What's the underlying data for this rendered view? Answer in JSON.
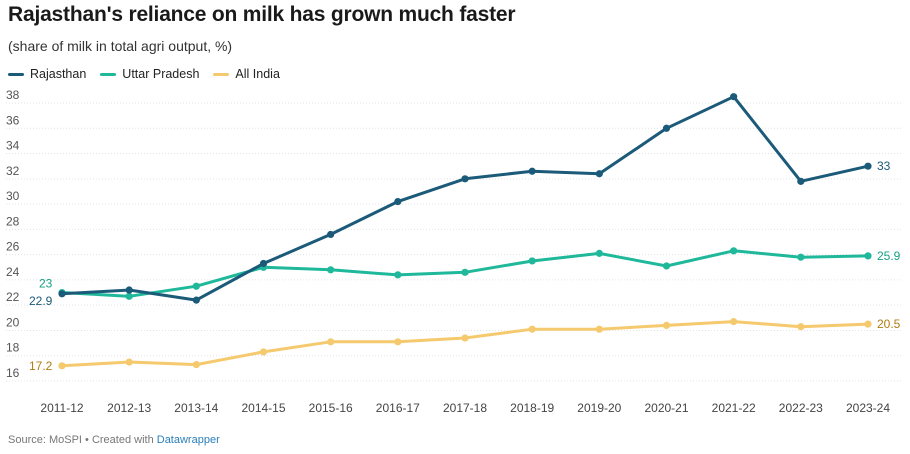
{
  "chart_data": {
    "type": "line",
    "title": "Rajasthan's reliance on milk has grown much faster",
    "subtitle": "(share of milk in total agri output, %)",
    "categories": [
      "2011-12",
      "2012-13",
      "2013-14",
      "2014-15",
      "2015-16",
      "2016-17",
      "2017-18",
      "2018-19",
      "2019-20",
      "2020-21",
      "2021-22",
      "2022-23",
      "2023-24"
    ],
    "ylim": [
      15,
      39
    ],
    "yticks": [
      16,
      18,
      20,
      22,
      24,
      26,
      28,
      30,
      32,
      34,
      36,
      38
    ],
    "series": [
      {
        "name": "Rajasthan",
        "color": "#1b5a78",
        "values": [
          22.9,
          23.2,
          22.4,
          25.3,
          27.6,
          30.2,
          32.0,
          32.6,
          32.4,
          36.0,
          38.5,
          31.8,
          33.0
        ],
        "start_label": "22.9",
        "end_label": "33"
      },
      {
        "name": "Uttar Pradesh",
        "color": "#1fb89a",
        "values": [
          23.0,
          22.7,
          23.5,
          25.0,
          24.8,
          24.4,
          24.6,
          25.5,
          26.1,
          25.1,
          26.3,
          25.8,
          25.9
        ],
        "start_label": "23",
        "end_label": "25.9"
      },
      {
        "name": "All India",
        "color": "#f5c96e",
        "values": [
          17.2,
          17.5,
          17.3,
          18.3,
          19.1,
          19.1,
          19.4,
          20.1,
          20.1,
          20.4,
          20.7,
          20.3,
          20.5
        ],
        "start_label": "17.2",
        "end_label": "20.5"
      }
    ],
    "label_colors": {
      "Rajasthan": "#1b5a78",
      "Uttar Pradesh": "#17a085",
      "All India": "#b07d10"
    }
  },
  "footer": {
    "source_text": "Source: MoSPI • Created with ",
    "credit": "Datawrapper"
  }
}
